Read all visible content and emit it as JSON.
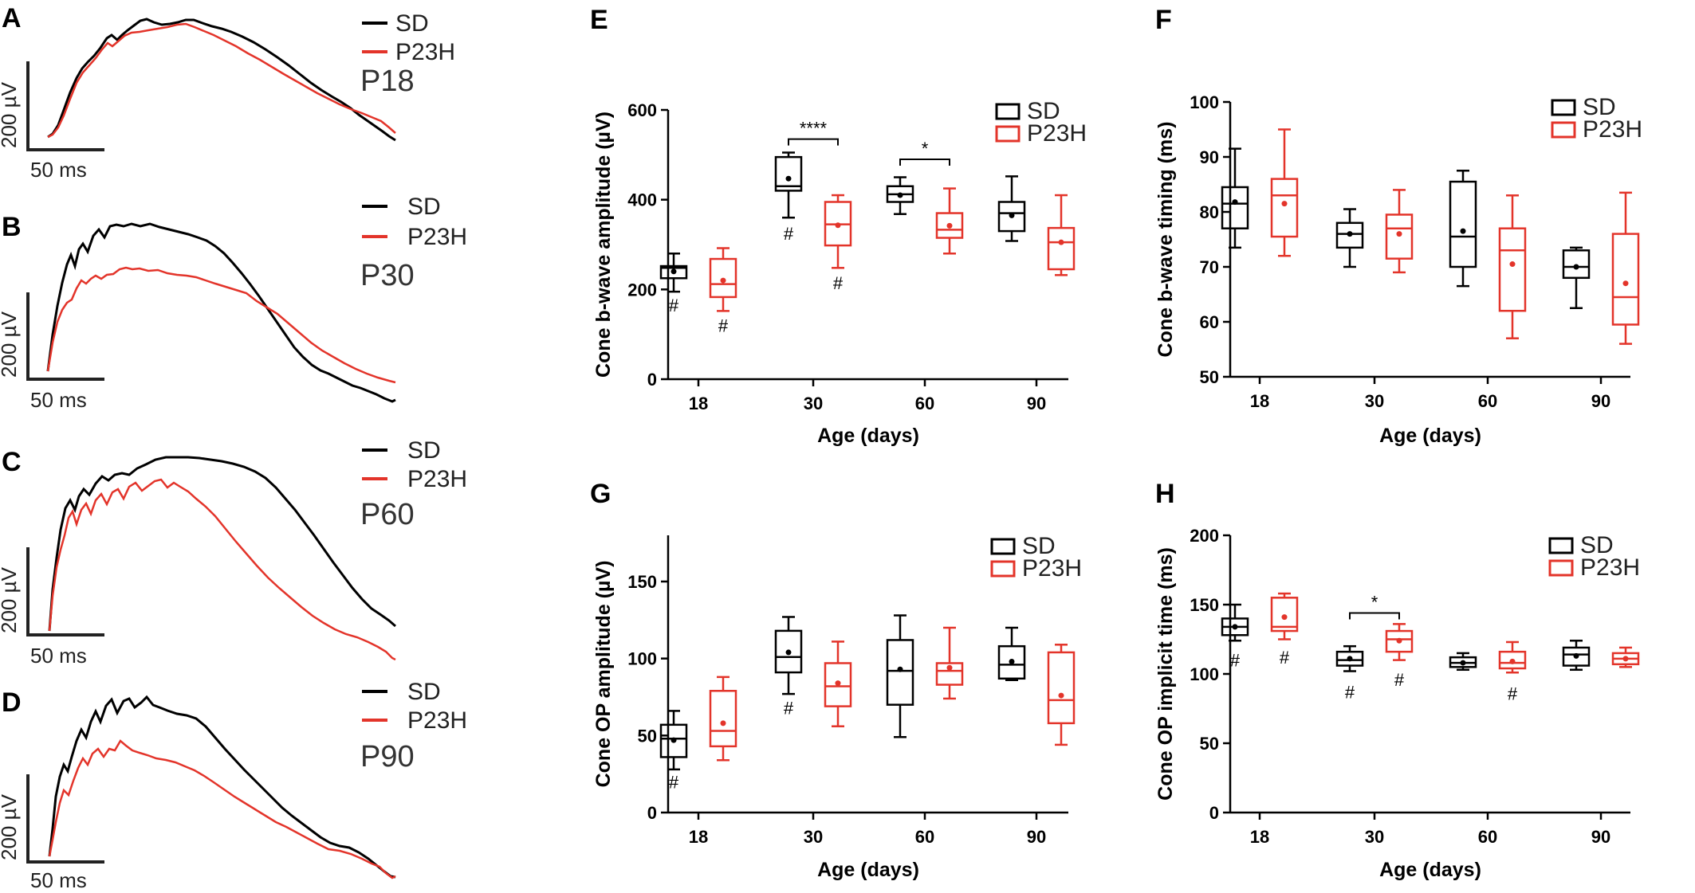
{
  "colors": {
    "sd": "#000000",
    "p23h": "#e3342a"
  },
  "traces": [
    {
      "letter": "A",
      "legend": [
        "SD",
        "P23H"
      ],
      "age_label": "P18",
      "scale_y": "200 µV",
      "scale_x": "50 ms"
    },
    {
      "letter": "B",
      "legend": [
        "SD",
        "P23H"
      ],
      "age_label": "P30",
      "scale_y": "200 µV",
      "scale_x": "50 ms"
    },
    {
      "letter": "C",
      "legend": [
        "SD",
        "P23H"
      ],
      "age_label": "P60",
      "scale_y": "200 µV",
      "scale_x": "50 ms"
    },
    {
      "letter": "D",
      "legend": [
        "SD",
        "P23H"
      ],
      "age_label": "P90",
      "scale_y": "200 µV",
      "scale_x": "50 ms"
    }
  ],
  "chart_data": [
    {
      "type": "box",
      "panel": "E",
      "title": "",
      "xlabel": "Age (days)",
      "ylabel": "Cone b-wave amplitude (µV)",
      "ylim": [
        0,
        600
      ],
      "yticks": [
        0,
        200,
        400,
        600
      ],
      "categories": [
        "18",
        "30",
        "60",
        "90"
      ],
      "legend": [
        "SD",
        "P23H"
      ],
      "series": [
        {
          "name": "SD",
          "boxes": [
            {
              "min": 195,
              "q1": 225,
              "median": 248,
              "q3": 252,
              "max": 280,
              "mean": 240
            },
            {
              "min": 360,
              "q1": 420,
              "median": 430,
              "q3": 495,
              "max": 505,
              "mean": 447
            },
            {
              "min": 368,
              "q1": 395,
              "median": 412,
              "q3": 430,
              "max": 450,
              "mean": 410
            },
            {
              "min": 308,
              "q1": 330,
              "median": 370,
              "q3": 395,
              "max": 452,
              "mean": 365
            }
          ]
        },
        {
          "name": "P23H",
          "boxes": [
            {
              "min": 152,
              "q1": 183,
              "median": 212,
              "q3": 268,
              "max": 292,
              "mean": 220
            },
            {
              "min": 248,
              "q1": 298,
              "median": 345,
              "q3": 395,
              "max": 410,
              "mean": 343
            },
            {
              "min": 280,
              "q1": 315,
              "median": 333,
              "q3": 370,
              "max": 425,
              "mean": 342
            },
            {
              "min": 232,
              "q1": 245,
              "median": 305,
              "q3": 337,
              "max": 410,
              "mean": 305
            }
          ]
        }
      ],
      "hash_marks": [
        {
          "category": "18",
          "series": "SD",
          "label": "#",
          "y": 165
        },
        {
          "category": "18",
          "series": "P23H",
          "label": "#",
          "y": 120
        },
        {
          "category": "30",
          "series": "SD",
          "label": "#",
          "y": 325
        },
        {
          "category": "30",
          "series": "P23H",
          "label": "#",
          "y": 215
        }
      ],
      "significance": [
        {
          "category": "30",
          "label": "****",
          "y": 535
        },
        {
          "category": "60",
          "label": "*",
          "y": 490
        }
      ]
    },
    {
      "type": "box",
      "panel": "F",
      "title": "",
      "xlabel": "Age (days)",
      "ylabel": "Cone b-wave timing (ms)",
      "ylim": [
        50,
        100
      ],
      "yticks": [
        50,
        60,
        70,
        80,
        90,
        100
      ],
      "categories": [
        "18",
        "30",
        "60",
        "90"
      ],
      "legend": [
        "SD",
        "P23H"
      ],
      "series": [
        {
          "name": "SD",
          "boxes": [
            {
              "min": 73.5,
              "q1": 77,
              "median": 81.5,
              "q3": 84.5,
              "max": 91.5,
              "mean": 81.8
            },
            {
              "min": 70,
              "q1": 73.5,
              "median": 76,
              "q3": 78,
              "max": 80.5,
              "mean": 76
            },
            {
              "min": 66.5,
              "q1": 70,
              "median": 75.5,
              "q3": 85.5,
              "max": 87.5,
              "mean": 76.5
            },
            {
              "min": 62.5,
              "q1": 68,
              "median": 70,
              "q3": 73,
              "max": 73.5,
              "mean": 70
            }
          ]
        },
        {
          "name": "P23H",
          "boxes": [
            {
              "min": 72,
              "q1": 75.5,
              "median": 83,
              "q3": 86,
              "max": 95,
              "mean": 81.5
            },
            {
              "min": 69,
              "q1": 71.5,
              "median": 77,
              "q3": 79.5,
              "max": 84,
              "mean": 76
            },
            {
              "min": 57,
              "q1": 62,
              "median": 73,
              "q3": 77,
              "max": 83,
              "mean": 70.5
            },
            {
              "min": 56,
              "q1": 59.5,
              "median": 64.5,
              "q3": 76,
              "max": 83.5,
              "mean": 67
            }
          ]
        }
      ]
    },
    {
      "type": "box",
      "panel": "G",
      "title": "",
      "xlabel": "Age (days)",
      "ylabel": "Cone OP amplitude (µV)",
      "ylim": [
        0,
        180
      ],
      "yticks": [
        0,
        50,
        100,
        150
      ],
      "categories": [
        "18",
        "30",
        "60",
        "90"
      ],
      "legend": [
        "SD",
        "P23H"
      ],
      "series": [
        {
          "name": "SD",
          "boxes": [
            {
              "min": 28,
              "q1": 36,
              "median": 48,
              "q3": 57,
              "max": 66,
              "mean": 47
            },
            {
              "min": 77,
              "q1": 91,
              "median": 101,
              "q3": 118,
              "max": 127,
              "mean": 104
            },
            {
              "min": 49,
              "q1": 70,
              "median": 92,
              "q3": 112,
              "max": 128,
              "mean": 93
            },
            {
              "min": 86,
              "q1": 87,
              "median": 96,
              "q3": 108,
              "max": 120,
              "mean": 98
            }
          ]
        },
        {
          "name": "P23H",
          "boxes": [
            {
              "min": 34,
              "q1": 43,
              "median": 53,
              "q3": 79,
              "max": 88,
              "mean": 58
            },
            {
              "min": 56,
              "q1": 69,
              "median": 82,
              "q3": 97,
              "max": 111,
              "mean": 84
            },
            {
              "min": 74,
              "q1": 83,
              "median": 92,
              "q3": 97,
              "max": 120,
              "mean": 94
            },
            {
              "min": 44,
              "q1": 58,
              "median": 73,
              "q3": 104,
              "max": 109,
              "mean": 76
            }
          ]
        }
      ],
      "hash_marks": [
        {
          "category": "18",
          "series": "SD",
          "label": "#",
          "y": 20
        },
        {
          "category": "30",
          "series": "SD",
          "label": "#",
          "y": 68
        }
      ]
    },
    {
      "type": "box",
      "panel": "H",
      "title": "",
      "xlabel": "Age (days)",
      "ylabel": "Cone OP implicit time (ms)",
      "ylim": [
        0,
        200
      ],
      "yticks": [
        0,
        50,
        100,
        150,
        200
      ],
      "categories": [
        "18",
        "30",
        "60",
        "90"
      ],
      "legend": [
        "SD",
        "P23H"
      ],
      "series": [
        {
          "name": "SD",
          "boxes": [
            {
              "min": 124,
              "q1": 128,
              "median": 134,
              "q3": 140,
              "max": 150,
              "mean": 134
            },
            {
              "min": 102,
              "q1": 106,
              "median": 110,
              "q3": 116,
              "max": 120,
              "mean": 111
            },
            {
              "min": 103,
              "q1": 105,
              "median": 108,
              "q3": 112,
              "max": 115,
              "mean": 108
            },
            {
              "min": 103,
              "q1": 106,
              "median": 114,
              "q3": 119,
              "max": 124,
              "mean": 113
            }
          ]
        },
        {
          "name": "P23H",
          "boxes": [
            {
              "min": 125,
              "q1": 131,
              "median": 134,
              "q3": 155,
              "max": 158,
              "mean": 141
            },
            {
              "min": 110,
              "q1": 116,
              "median": 125,
              "q3": 131,
              "max": 136,
              "mean": 124
            },
            {
              "min": 101,
              "q1": 104,
              "median": 108,
              "q3": 116,
              "max": 123,
              "mean": 109
            },
            {
              "min": 105,
              "q1": 107,
              "median": 111,
              "q3": 115,
              "max": 119,
              "mean": 111
            }
          ]
        }
      ],
      "hash_marks": [
        {
          "category": "18",
          "series": "SD",
          "label": "#",
          "y": 110
        },
        {
          "category": "18",
          "series": "P23H",
          "label": "#",
          "y": 112
        },
        {
          "category": "30",
          "series": "SD",
          "label": "#",
          "y": 87
        },
        {
          "category": "30",
          "series": "P23H",
          "label": "#",
          "y": 96
        },
        {
          "category": "60",
          "series": "P23H",
          "label": "#",
          "y": 86
        }
      ],
      "significance": [
        {
          "category": "30",
          "label": "*",
          "y": 144
        }
      ]
    }
  ]
}
